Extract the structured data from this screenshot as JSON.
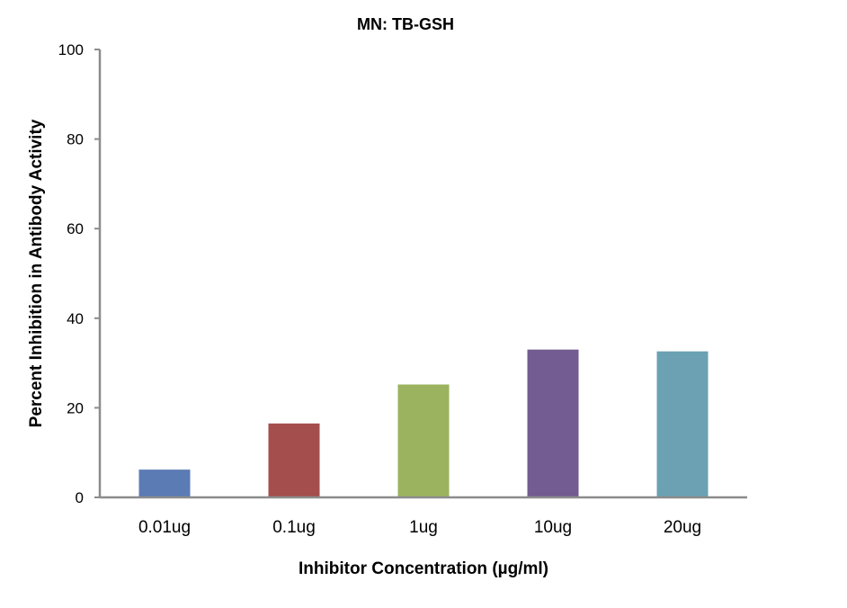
{
  "chart_data": {
    "type": "bar",
    "title": "MN: TB-GSH",
    "xlabel": "Inhibitor Concentration (µg/ml)",
    "ylabel": "Percent Inhibition in Antibody Activity",
    "categories": [
      "0.01ug",
      "0.1ug",
      "1ug",
      "10ug",
      "20ug"
    ],
    "values": [
      6.2,
      16.5,
      25.2,
      33.0,
      32.6
    ],
    "colors": [
      "#5b7bb5",
      "#a44f4d",
      "#9bb35e",
      "#735c91",
      "#6ba1b3"
    ],
    "ylim": [
      0,
      100
    ],
    "yticks": [
      "0",
      "20",
      "40",
      "60",
      "80",
      "100"
    ],
    "grid": false,
    "legend": "none"
  }
}
